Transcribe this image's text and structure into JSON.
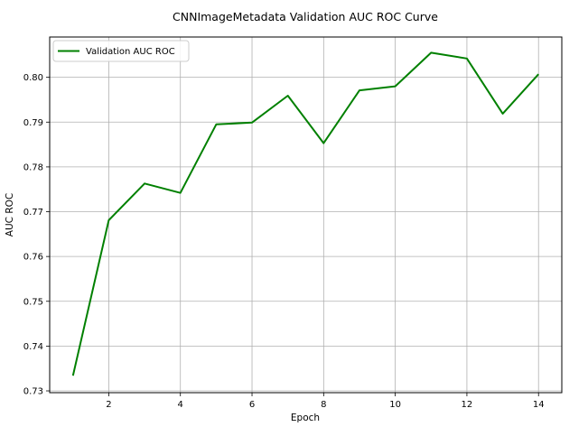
{
  "chart_data": {
    "type": "line",
    "title": "CNNImageMetadata Validation AUC ROC Curve",
    "xlabel": "Epoch",
    "ylabel": "AUC ROC",
    "xlim": [
      0.35,
      14.65
    ],
    "ylim": [
      0.7296,
      0.809
    ],
    "xticks": [
      2,
      4,
      6,
      8,
      10,
      12,
      14
    ],
    "yticks": [
      0.73,
      0.74,
      0.75,
      0.76,
      0.77,
      0.78,
      0.79,
      0.8
    ],
    "ytick_labels": [
      "0.73",
      "0.74",
      "0.75",
      "0.76",
      "0.77",
      "0.78",
      "0.79",
      "0.80"
    ],
    "grid": true,
    "legend_position": "top-left",
    "series": [
      {
        "name": "Validation AUC ROC",
        "color": "#008000",
        "x": [
          1,
          2,
          3,
          4,
          5,
          6,
          7,
          8,
          9,
          10,
          11,
          12,
          13,
          14
        ],
        "values": [
          0.7334,
          0.7681,
          0.7763,
          0.7742,
          0.7895,
          0.7899,
          0.7959,
          0.7853,
          0.7971,
          0.798,
          0.8055,
          0.8042,
          0.7919,
          0.8007
        ]
      }
    ]
  }
}
